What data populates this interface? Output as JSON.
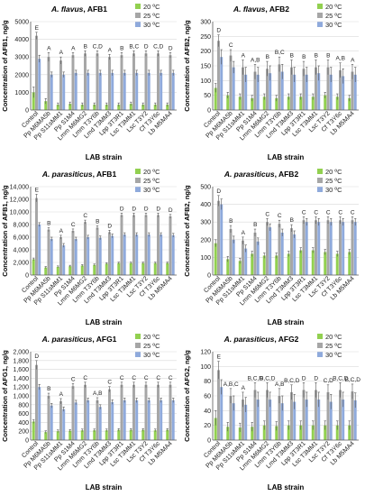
{
  "figure": {
    "background": "#ffffff",
    "axis_color": "#595959",
    "grid_color": "#d9d9d9"
  },
  "chart_data": [
    {
      "type": "bar",
      "title_species": "A. flavus",
      "title_toxin": ", AFB1",
      "xlabel": "LAB strain",
      "ylabel": "Concentration of AFB1, ng/g",
      "ylim": [
        0,
        5000
      ],
      "yticks": [
        0,
        1000,
        2000,
        3000,
        4000,
        5000
      ],
      "ytick_labels": [
        "0",
        "1000",
        "2000",
        "3000",
        "4000",
        "5000"
      ],
      "categories": [
        "Control",
        "Pp M6MA5b",
        "Pp S11sMM1",
        "Pp S1M4",
        "Lmm M6MG2",
        "Lmm T3Y6b",
        "Lmd T3MM3",
        "Lpp 3T3R1",
        "Lsc T3MM1",
        "Lsc T3Y2",
        "Cf T3Y6c",
        "Lb M5MA4"
      ],
      "legend": [
        "20 ºC",
        "25 ºC",
        "30 ºC"
      ],
      "series": [
        {
          "name": "20 ºC",
          "color": "#92d050",
          "values": [
            1000,
            500,
            300,
            350,
            300,
            300,
            300,
            300,
            350,
            300,
            300,
            300
          ],
          "errors": [
            300,
            150,
            100,
            100,
            100,
            100,
            100,
            100,
            100,
            100,
            100,
            100
          ]
        },
        {
          "name": "25 ºC",
          "color": "#a6a6a6",
          "values": [
            4200,
            3000,
            2800,
            3100,
            3200,
            3200,
            3000,
            3100,
            3200,
            3200,
            3200,
            3100
          ],
          "errors": [
            200,
            250,
            200,
            150,
            150,
            150,
            150,
            150,
            150,
            150,
            150,
            150
          ]
        },
        {
          "name": "30 ºC",
          "color": "#8faadc",
          "values": [
            2900,
            2000,
            2000,
            2100,
            2100,
            2100,
            2100,
            2100,
            2100,
            2100,
            2100,
            2100
          ],
          "errors": [
            200,
            150,
            150,
            150,
            150,
            150,
            150,
            150,
            150,
            150,
            150,
            150
          ]
        }
      ],
      "sig_labels": [
        "E",
        "A",
        "A",
        "A",
        "B",
        "C,D",
        "A",
        "B",
        "B,C",
        "D",
        "C,D",
        "D"
      ]
    },
    {
      "type": "bar",
      "title_species": "A. flavus",
      "title_toxin": ", AFB2",
      "xlabel": "LAB strain",
      "ylabel": "Concentration of AFB2, ng/g",
      "ylim": [
        0,
        300
      ],
      "yticks": [
        0,
        50,
        100,
        150,
        200,
        250,
        300
      ],
      "ytick_labels": [
        "0",
        "50",
        "100",
        "150",
        "200",
        "250",
        "300"
      ],
      "categories": [
        "Control",
        "Pp M6MA5b",
        "Pp S11sMM1",
        "Pp S1M4",
        "Lmm M6MG2",
        "Lmm T3Y6b",
        "Lmd T3MM3",
        "Lpp 3T3R1",
        "Lsc T3MM1",
        "Lsc T3Y2",
        "Cf T3Y6c",
        "Lb M5MA4"
      ],
      "legend": [
        "20 ºC",
        "25 ºC",
        "30 ºC"
      ],
      "series": [
        {
          "name": "20 ºC",
          "color": "#92d050",
          "values": [
            75,
            50,
            45,
            40,
            45,
            40,
            45,
            45,
            45,
            50,
            45,
            40
          ],
          "errors": [
            15,
            10,
            10,
            10,
            10,
            10,
            10,
            10,
            10,
            10,
            10,
            10
          ]
        },
        {
          "name": "25 ºC",
          "color": "#a6a6a6",
          "values": [
            235,
            185,
            145,
            130,
            140,
            155,
            145,
            140,
            145,
            145,
            135,
            130
          ],
          "errors": [
            20,
            20,
            25,
            25,
            25,
            25,
            25,
            25,
            25,
            25,
            25,
            25
          ]
        },
        {
          "name": "30 ºC",
          "color": "#8faadc",
          "values": [
            180,
            145,
            120,
            120,
            125,
            130,
            120,
            120,
            125,
            120,
            115,
            120
          ],
          "errors": [
            25,
            20,
            25,
            25,
            25,
            25,
            25,
            25,
            25,
            25,
            25,
            25
          ]
        }
      ],
      "sig_labels": [
        "D",
        "C",
        "A",
        "A,B",
        "B",
        "B,C",
        "B",
        "B",
        "B",
        "B",
        "A,B",
        "A"
      ]
    },
    {
      "type": "bar",
      "title_species": "A. parasiticus",
      "title_toxin": ", AFB1",
      "xlabel": "LAB strain",
      "ylabel": "Concentration of AFB1, ng/g",
      "ylim": [
        0,
        14000
      ],
      "yticks": [
        0,
        2000,
        4000,
        6000,
        8000,
        10000,
        12000,
        14000
      ],
      "ytick_labels": [
        "0",
        "2,000",
        "4,000",
        "6,000",
        "8,000",
        "10,000",
        "12,000",
        "14,000"
      ],
      "categories": [
        "Control",
        "Pp M6MA5b",
        "Pp S11sMM1",
        "Pp S1M4",
        "Lmm M6MG2",
        "Lmm T3Y6b",
        "Lmd T3MM3",
        "Lpp 3T3R1",
        "Lsc T3MM1",
        "Lsc T3Y2",
        "Cf T3Y6c",
        "Lb M5MA4"
      ],
      "legend": [
        "20 ºC",
        "25 ºC",
        "30 ºC"
      ],
      "series": [
        {
          "name": "20 ºC",
          "color": "#92d050",
          "values": [
            2500,
            1200,
            1300,
            1400,
            1500,
            1600,
            1800,
            1900,
            1900,
            1900,
            1900,
            1900
          ],
          "errors": [
            200,
            150,
            150,
            150,
            150,
            150,
            150,
            150,
            150,
            150,
            150,
            150
          ]
        },
        {
          "name": "25 ºC",
          "color": "#a6a6a6",
          "values": [
            12200,
            7200,
            6000,
            7000,
            8400,
            7500,
            6800,
            9500,
            9500,
            9500,
            9500,
            9300
          ],
          "errors": [
            600,
            300,
            300,
            300,
            300,
            300,
            300,
            300,
            300,
            300,
            300,
            300
          ]
        },
        {
          "name": "30 ºC",
          "color": "#8faadc",
          "values": [
            8000,
            5700,
            4700,
            5700,
            6000,
            5900,
            6200,
            6400,
            6400,
            6400,
            6400,
            6300
          ],
          "errors": [
            300,
            300,
            300,
            300,
            300,
            300,
            300,
            300,
            300,
            300,
            300,
            300
          ]
        }
      ],
      "sig_labels": [
        "E",
        "B",
        "A",
        "C",
        "C",
        "B",
        "D",
        "D",
        "D",
        "D",
        "D",
        "D"
      ]
    },
    {
      "type": "bar",
      "title_species": "A. parasiticus",
      "title_toxin": ", AFB2",
      "xlabel": "LAB strain",
      "ylabel": "Concentration of AFB2, ng/g",
      "ylim": [
        0,
        500
      ],
      "yticks": [
        0,
        100,
        200,
        300,
        400,
        500
      ],
      "ytick_labels": [
        "0",
        "100",
        "200",
        "300",
        "400",
        "500"
      ],
      "categories": [
        "Control",
        "Pp M6MA5b",
        "Pp S11sMM1",
        "Pp S1M4",
        "Lmm M6MG2",
        "Lmm T3Y6b",
        "Lmd T3MM3",
        "Lpp 3T3R1",
        "Lsc T3MM1",
        "Lsc T3Y2",
        "Cf T3Y6c",
        "Lb M5MA4"
      ],
      "legend": [
        "20 ºC",
        "25 ºC",
        "30 ºC"
      ],
      "series": [
        {
          "name": "20 ºC",
          "color": "#92d050",
          "values": [
            180,
            90,
            80,
            120,
            110,
            110,
            120,
            140,
            140,
            130,
            120,
            130
          ],
          "errors": [
            20,
            15,
            15,
            15,
            15,
            15,
            15,
            15,
            15,
            15,
            15,
            15
          ]
        },
        {
          "name": "25 ºC",
          "color": "#a6a6a6",
          "values": [
            420,
            260,
            195,
            240,
            300,
            290,
            265,
            310,
            310,
            310,
            310,
            310
          ],
          "errors": [
            30,
            20,
            20,
            20,
            20,
            20,
            20,
            20,
            20,
            20,
            20,
            20
          ]
        },
        {
          "name": "30 ºC",
          "color": "#8faadc",
          "values": [
            400,
            200,
            150,
            190,
            270,
            240,
            230,
            300,
            300,
            300,
            300,
            300
          ],
          "errors": [
            30,
            20,
            20,
            20,
            20,
            20,
            20,
            20,
            20,
            20,
            20,
            20
          ]
        }
      ],
      "sig_labels": [
        "D",
        "B",
        "A",
        "B",
        "C",
        "C",
        "B",
        "C",
        "C",
        "C",
        "C",
        "C"
      ]
    },
    {
      "type": "bar",
      "title_species": "A. parasiticus",
      "title_toxin": ", AFG1",
      "xlabel": "LAB strain",
      "ylabel": "Concentration of AFG1, ng/g",
      "ylim": [
        0,
        2000
      ],
      "yticks": [
        0,
        200,
        400,
        600,
        800,
        1000,
        1200,
        1400,
        1600,
        1800,
        2000
      ],
      "ytick_labels": [
        "0",
        "200",
        "400",
        "600",
        "800",
        "1,000",
        "1,200",
        "1,400",
        "1,600",
        "1,800",
        "2,000"
      ],
      "categories": [
        "Control",
        "Pp M6MA5b",
        "Pp S11sMM1",
        "Pp S1M4",
        "Lmm M6MG2",
        "Lmm T3Y6b",
        "Lmd T3MM3",
        "Lpp 3T3R1",
        "Lsc T3MM1",
        "Lsc T3Y2",
        "Cf T3Y6c",
        "Lb M5MA4"
      ],
      "legend": [
        "20 ºC",
        "25 ºC",
        "30 ºC"
      ],
      "series": [
        {
          "name": "20 ºC",
          "color": "#92d050",
          "values": [
            420,
            180,
            200,
            210,
            220,
            220,
            220,
            230,
            230,
            230,
            220,
            230
          ],
          "errors": [
            40,
            30,
            30,
            30,
            30,
            30,
            30,
            30,
            30,
            30,
            30,
            30
          ]
        },
        {
          "name": "25 ºC",
          "color": "#a6a6a6",
          "values": [
            1700,
            1000,
            880,
            1220,
            1250,
            900,
            1150,
            1250,
            1250,
            1250,
            1250,
            1250
          ],
          "errors": [
            100,
            60,
            60,
            60,
            60,
            60,
            60,
            60,
            60,
            60,
            60,
            60
          ]
        },
        {
          "name": "30 ºC",
          "color": "#8faadc",
          "values": [
            1200,
            780,
            700,
            850,
            900,
            750,
            860,
            900,
            900,
            900,
            900,
            900
          ],
          "errors": [
            60,
            50,
            50,
            50,
            50,
            50,
            50,
            50,
            50,
            50,
            50,
            50
          ]
        }
      ],
      "sig_labels": [
        "D",
        "B",
        "A",
        "C",
        "C",
        "A,B",
        "C",
        "C",
        "C",
        "C",
        "C",
        "C"
      ]
    },
    {
      "type": "bar",
      "title_species": "A. parasiticus",
      "title_toxin": ", AFG2",
      "xlabel": "LAB strain",
      "ylabel": "Concentration of AFG2, ng/g",
      "ylim": [
        0,
        120
      ],
      "yticks": [
        0,
        20,
        40,
        60,
        80,
        100,
        120
      ],
      "ytick_labels": [
        "0",
        "20",
        "40",
        "60",
        "80",
        "100",
        "120"
      ],
      "categories": [
        "Control",
        "Pp M6MA5b",
        "Pp S11sMM1",
        "Pp S1M4",
        "Lmm M6MG2",
        "Lmm T3Y6b",
        "Lmd T3MM3",
        "Lpp 3T3R1",
        "Lsc T3MM1",
        "Lsc T3Y2",
        "Cf T3Y6c",
        "Lb M5MA4"
      ],
      "legend": [
        "20 ºC",
        "25 ºC",
        "30 ºC"
      ],
      "series": [
        {
          "name": "20 ºC",
          "color": "#92d050",
          "values": [
            30,
            18,
            17,
            18,
            20,
            19,
            20,
            20,
            20,
            20,
            20,
            20
          ],
          "errors": [
            10,
            6,
            6,
            6,
            6,
            6,
            6,
            6,
            6,
            6,
            6,
            6
          ]
        },
        {
          "name": "25 ºC",
          "color": "#a6a6a6",
          "values": [
            95,
            60,
            55,
            68,
            68,
            60,
            65,
            68,
            68,
            65,
            68,
            66
          ],
          "errors": [
            12,
            10,
            10,
            10,
            10,
            10,
            10,
            10,
            10,
            10,
            10,
            10
          ]
        },
        {
          "name": "30 ºC",
          "color": "#8faadc",
          "values": [
            72,
            50,
            48,
            55,
            55,
            50,
            52,
            55,
            55,
            52,
            55,
            54
          ],
          "errors": [
            10,
            10,
            10,
            10,
            10,
            10,
            10,
            10,
            10,
            10,
            10,
            10
          ]
        }
      ],
      "sig_labels": [
        "E",
        "A,B,C",
        "A",
        "B,C,D",
        "B,C,D",
        "A,B",
        "B,C,D",
        "D",
        "D",
        "C,D",
        "B,C,D",
        "B,C,D"
      ]
    }
  ]
}
